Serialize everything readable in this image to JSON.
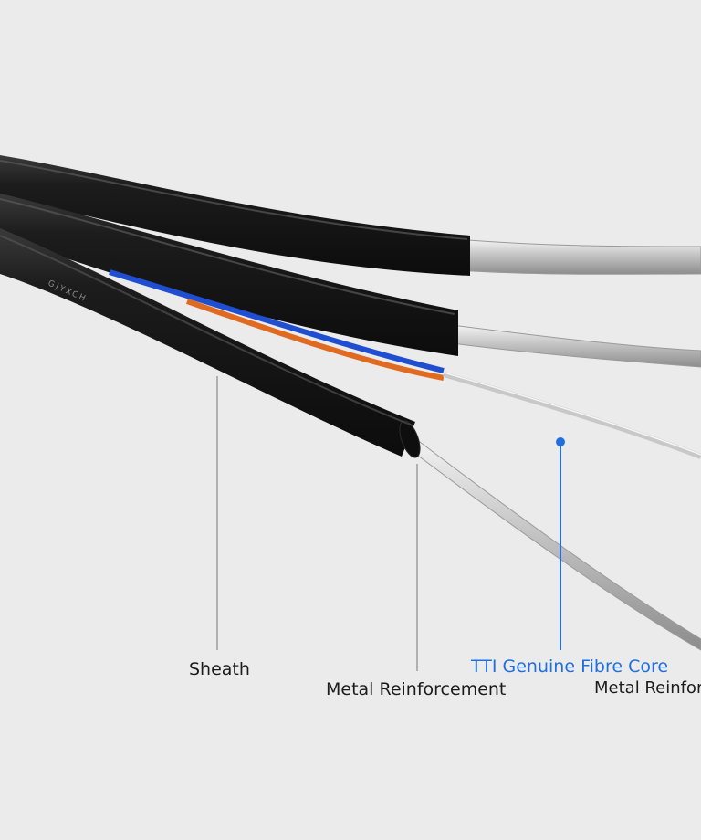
{
  "cable_print": "GJYXCH",
  "labels": {
    "sheath": "Sheath",
    "metal_reinforcement": "Metal Reinforcement",
    "fibre_core": "TTI Genuine Fibre Core",
    "metal_reinforcement_cut": "Metal Reinfor"
  },
  "colors": {
    "background": "#ebebeb",
    "cable_sheath": "#151515",
    "fibre_blue": "#1f4fd0",
    "fibre_orange": "#e06a20",
    "callout_blue": "#1f6fe0",
    "callout_gray": "#8a8a8a",
    "metal_wire": "#c9c9c9"
  }
}
